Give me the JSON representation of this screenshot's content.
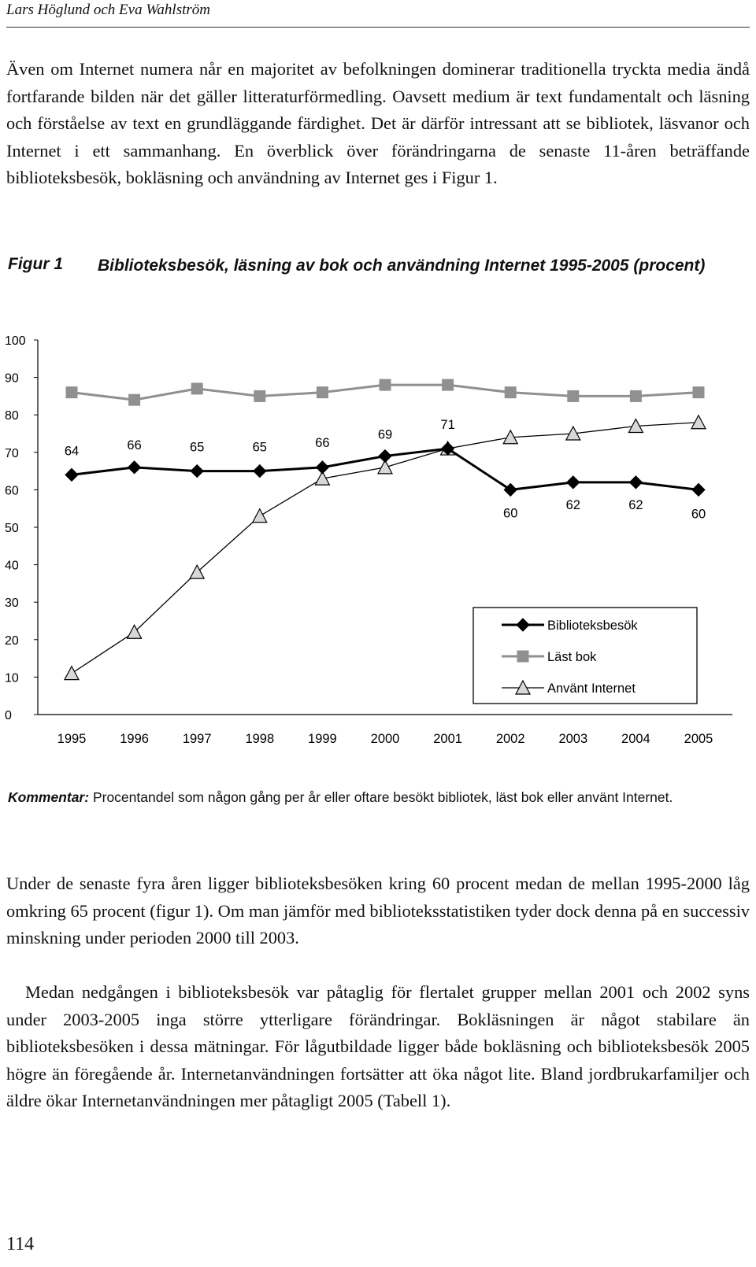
{
  "running_head": "Lars Höglund och Eva Wahlström",
  "paragraphs": {
    "p1": "Även om Internet numera når en majoritet av befolkningen dominerar traditionella tryckta media ändå fortfarande bilden när det gäller litteraturförmedling. Oavsett medium är text fundamentalt och läsning och förståelse av text en grundläggande färdighet. Det är därför intressant att se bibliotek, läsvanor och Internet i ett sammanhang. En överblick över förändringarna de senaste 11-åren beträffande biblioteksbesök, bokläsning och användning av Internet ges i Figur 1.",
    "p2": "Under de senaste fyra åren ligger biblioteksbesöken kring 60 procent medan de mellan 1995-2000 låg omkring 65 procent (figur 1). Om man jämför med biblioteksstatistiken tyder dock denna på en successiv minskning under perioden 2000 till 2003.",
    "p3": "Medan nedgången i biblioteksbesök var påtaglig för flertalet grupper mellan 2001 och 2002 syns under 2003-2005 inga större ytterligare förändringar. Bokläsningen är något stabilare än biblioteksbesöken i dessa mätningar. För lågutbildade ligger både bokläsning och biblioteksbesök 2005 högre än föregående år. Internetanvändningen fortsätter att öka något lite. Bland jordbrukarfamiljer och äldre ökar Internetanvändningen mer påtagligt 2005 (Tabell 1)."
  },
  "figure": {
    "label": "Figur 1",
    "title": "Biblioteksbesök, läsning av bok och användning Internet 1995-2005 (procent)",
    "comment_label": "Kommentar:",
    "comment_text": "Procentandel som någon gång per år eller oftare besökt bibliotek, läst bok eller använt Internet."
  },
  "chart_data": {
    "type": "line",
    "title": "Biblioteksbesök, läsning av bok och användning Internet 1995-2005 (procent)",
    "xlabel": "",
    "ylabel": "",
    "categories": [
      "1995",
      "1996",
      "1997",
      "1998",
      "1999",
      "2000",
      "2001",
      "2002",
      "2003",
      "2004",
      "2005"
    ],
    "ylim": [
      0,
      100
    ],
    "yticks": [
      0,
      10,
      20,
      30,
      40,
      50,
      60,
      70,
      80,
      90,
      100
    ],
    "grid": false,
    "legend_position": "bottom-right",
    "series": [
      {
        "name": "Biblioteksbesök",
        "marker": "diamond",
        "color": "#000000",
        "labeled": true,
        "values": [
          64,
          66,
          65,
          65,
          66,
          69,
          71,
          60,
          62,
          62,
          60
        ]
      },
      {
        "name": "Läst bok",
        "marker": "square",
        "color": "#909090",
        "labeled": false,
        "values": [
          86,
          84,
          87,
          85,
          86,
          88,
          88,
          86,
          85,
          85,
          86
        ]
      },
      {
        "name": "Använt Internet",
        "marker": "triangle",
        "color": "#000000",
        "labeled": false,
        "values": [
          11,
          22,
          38,
          53,
          63,
          66,
          71,
          74,
          75,
          77,
          78
        ]
      }
    ]
  },
  "page_number": "114"
}
